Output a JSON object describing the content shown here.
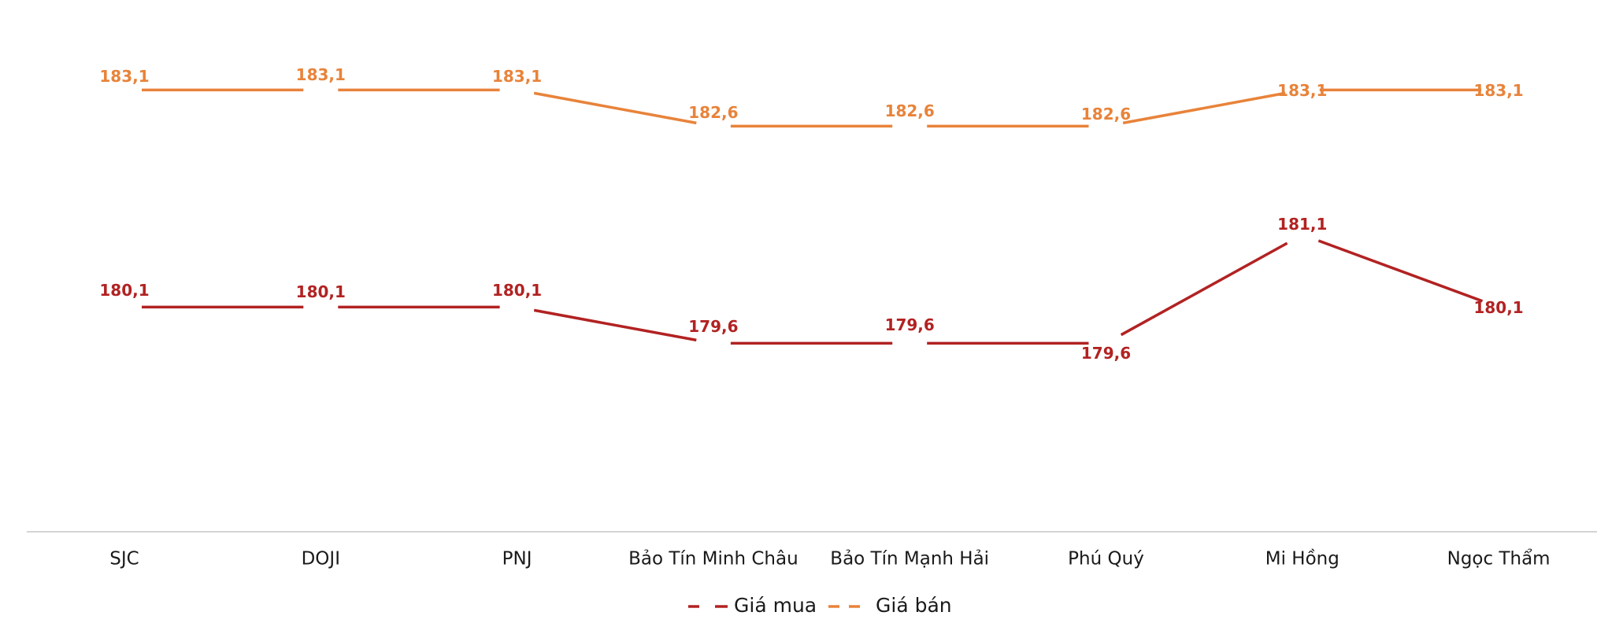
{
  "chart_data": {
    "type": "line",
    "categories": [
      "SJC",
      "DOJI",
      "PNJ",
      "Bảo Tín Minh Châu",
      "Bảo Tín Mạnh Hải",
      "Phú Quý",
      "Mi Hồng",
      "Ngọc Thẩm"
    ],
    "series": [
      {
        "name": "Giá mua",
        "color": "#b22222",
        "values": [
          180.1,
          180.1,
          180.1,
          179.6,
          179.6,
          179.6,
          181.1,
          180.1
        ],
        "labels": [
          "180,1",
          "180,1",
          "180,1",
          "179,6",
          "179,6",
          "179,6",
          "181,1",
          "180,1"
        ]
      },
      {
        "name": "Giá bán",
        "color": "#e8833a",
        "values": [
          183.1,
          183.1,
          183.1,
          182.6,
          182.6,
          182.6,
          183.1,
          183.1
        ],
        "labels": [
          "183,1",
          "183,1",
          "183,1",
          "182,6",
          "182,6",
          "182,6",
          "183,1",
          "183,1"
        ]
      }
    ],
    "title": "",
    "xlabel": "",
    "ylabel": "",
    "grid": false,
    "legend": "bottom-center"
  }
}
